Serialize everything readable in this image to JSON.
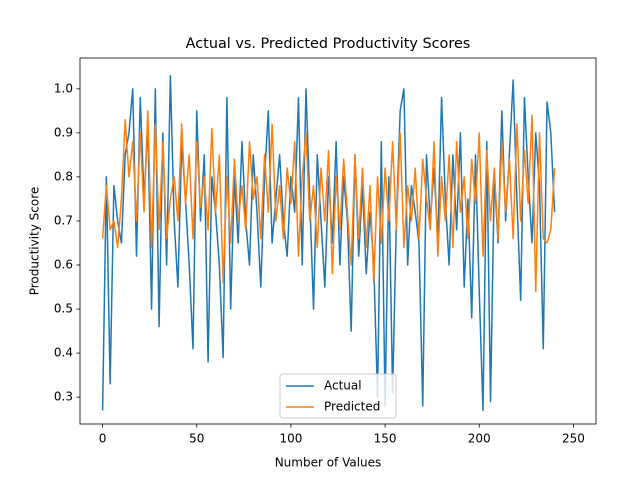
{
  "chart_data": {
    "type": "line",
    "title": "Actual vs. Predicted Productivity Scores",
    "x_label": "Number of Values",
    "y_label": "Productivity Score",
    "xlim": [
      -12,
      262
    ],
    "ylim": [
      0.239,
      1.07
    ],
    "xticks": [
      0,
      50,
      100,
      150,
      200,
      250
    ],
    "yticks": [
      0.3,
      0.4,
      0.5,
      0.6,
      0.7,
      0.8,
      0.9,
      {
        "value": 1,
        "label": "1.0"
      }
    ],
    "legend": "lower center",
    "x": [
      0,
      2,
      4,
      6,
      8,
      10,
      12,
      14,
      16,
      18,
      20,
      22,
      24,
      26,
      28,
      30,
      32,
      34,
      36,
      38,
      40,
      42,
      44,
      46,
      48,
      50,
      52,
      54,
      56,
      58,
      60,
      62,
      64,
      66,
      68,
      70,
      72,
      74,
      76,
      78,
      80,
      82,
      84,
      86,
      88,
      90,
      92,
      94,
      96,
      98,
      100,
      102,
      104,
      106,
      108,
      110,
      112,
      114,
      116,
      118,
      120,
      122,
      124,
      126,
      128,
      130,
      132,
      134,
      136,
      138,
      140,
      142,
      144,
      146,
      148,
      150,
      152,
      154,
      156,
      158,
      160,
      162,
      164,
      166,
      168,
      170,
      172,
      174,
      176,
      178,
      180,
      182,
      184,
      186,
      188,
      190,
      192,
      194,
      196,
      198,
      200,
      202,
      204,
      206,
      208,
      210,
      212,
      214,
      216,
      218,
      220,
      222,
      224,
      226,
      228,
      230,
      232,
      234,
      236,
      238,
      240
    ],
    "series": [
      {
        "name": "Actual",
        "color": "#1f77b4",
        "values": [
          0.27,
          0.8,
          0.33,
          0.78,
          0.7,
          0.65,
          0.85,
          0.9,
          1.0,
          0.62,
          0.98,
          0.75,
          0.92,
          0.5,
          1.0,
          0.46,
          0.9,
          0.6,
          1.03,
          0.7,
          0.55,
          0.88,
          0.75,
          0.6,
          0.41,
          0.95,
          0.7,
          0.85,
          0.38,
          0.8,
          0.72,
          0.6,
          0.39,
          0.98,
          0.5,
          0.8,
          0.65,
          0.88,
          0.7,
          0.6,
          0.85,
          0.72,
          0.55,
          0.8,
          0.95,
          0.65,
          0.75,
          0.85,
          0.7,
          0.62,
          0.8,
          0.72,
          0.98,
          0.6,
          1.0,
          0.75,
          0.5,
          0.85,
          0.7,
          0.55,
          0.8,
          0.65,
          0.88,
          0.6,
          0.8,
          0.7,
          0.45,
          0.85,
          0.62,
          0.78,
          0.58,
          0.72,
          0.6,
          0.3,
          0.88,
          0.28,
          0.8,
          0.31,
          0.7,
          0.95,
          1.0,
          0.6,
          0.78,
          0.72,
          0.65,
          0.28,
          0.85,
          0.7,
          0.82,
          0.65,
          0.98,
          0.75,
          0.6,
          0.85,
          0.68,
          0.9,
          0.55,
          0.75,
          0.48,
          0.85,
          0.54,
          0.27,
          0.88,
          0.29,
          0.8,
          0.65,
          0.95,
          0.7,
          0.85,
          1.02,
          0.75,
          0.52,
          0.98,
          0.8,
          0.65,
          0.9,
          0.78,
          0.41,
          0.97,
          0.9,
          0.72
        ]
      },
      {
        "name": "Predicted",
        "color": "#ff7f0e",
        "values": [
          0.66,
          0.78,
          0.68,
          0.7,
          0.64,
          0.75,
          0.93,
          0.8,
          0.88,
          0.7,
          0.9,
          0.72,
          0.95,
          0.64,
          0.92,
          0.68,
          0.88,
          0.66,
          0.75,
          0.8,
          0.7,
          0.92,
          0.74,
          0.85,
          0.66,
          0.88,
          0.73,
          0.8,
          0.68,
          0.91,
          0.72,
          0.85,
          0.56,
          0.8,
          0.65,
          0.84,
          0.7,
          0.78,
          0.68,
          0.88,
          0.75,
          0.8,
          0.66,
          0.85,
          0.72,
          0.92,
          0.7,
          0.78,
          0.66,
          0.82,
          0.74,
          0.88,
          0.62,
          0.8,
          0.9,
          0.7,
          0.78,
          0.64,
          0.82,
          0.7,
          0.86,
          0.58,
          0.8,
          0.68,
          0.84,
          0.72,
          0.6,
          0.85,
          0.66,
          0.82,
          0.64,
          0.78,
          0.56,
          0.8,
          0.65,
          0.82,
          0.7,
          0.88,
          0.68,
          0.9,
          0.64,
          0.78,
          0.7,
          0.82,
          0.66,
          0.84,
          0.75,
          0.68,
          0.88,
          0.62,
          0.8,
          0.7,
          0.85,
          0.64,
          0.88,
          0.72,
          0.8,
          0.66,
          0.84,
          0.74,
          0.9,
          0.62,
          0.86,
          0.7,
          0.82,
          0.66,
          0.88,
          0.72,
          0.84,
          0.66,
          0.92,
          0.7,
          0.86,
          0.74,
          0.94,
          0.54,
          0.9,
          0.66,
          0.65,
          0.68,
          0.82
        ]
      }
    ]
  }
}
